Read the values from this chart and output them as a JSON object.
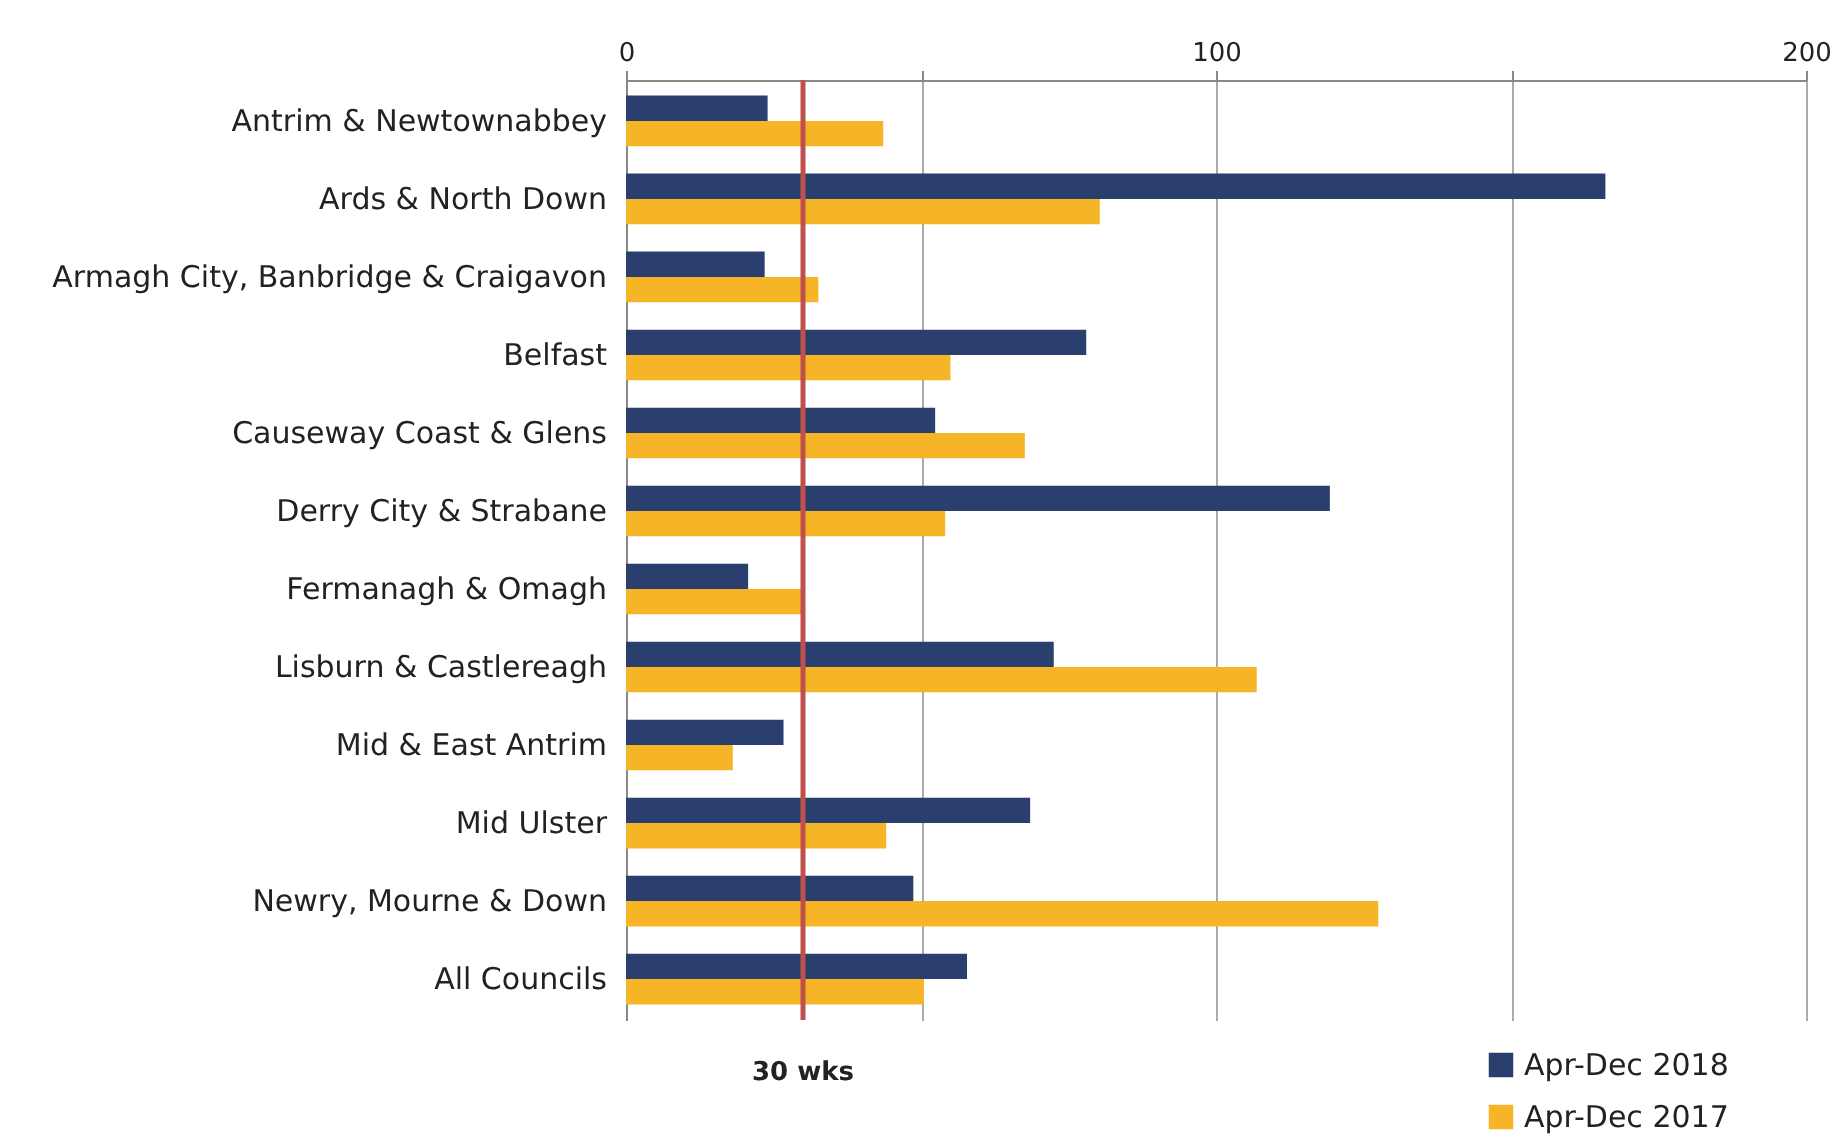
{
  "chart_data": {
    "type": "bar",
    "orientation": "horizontal",
    "categories": [
      "Antrim & Newtownabbey",
      "Ards & North Down",
      "Armagh City, Banbridge & Craigavon",
      "Belfast",
      "Causeway Coast & Glens",
      "Derry City & Strabane",
      "Fermanagh & Omagh",
      "Lisburn & Castlereagh",
      "Mid & East Antrim",
      "Mid Ulster",
      "Newry, Mourne & Down",
      "All Councils"
    ],
    "series": [
      {
        "name": "Apr-Dec 2018",
        "color": "#2b3f6e",
        "values": [
          24,
          166,
          23.5,
          78,
          52.4,
          119.3,
          20.7,
          72.5,
          26.7,
          68.5,
          48.7,
          57.8
        ]
      },
      {
        "name": "Apr-Dec 2017",
        "color": "#f6b526",
        "values": [
          43.6,
          80.3,
          32.6,
          55,
          67.6,
          54.1,
          29.7,
          106.9,
          18.1,
          44.1,
          127.5,
          50.5
        ]
      }
    ],
    "xlim": [
      0,
      200
    ],
    "xticks": [
      0,
      {
        "value": 50,
        "label": null
      },
      100,
      {
        "value": 150,
        "label": null
      },
      200
    ],
    "grid": "x",
    "legend": "bottom right",
    "ref_lines": [
      {
        "axis": "x",
        "value": 30,
        "label": "30 wks",
        "color": "#c0504d"
      }
    ]
  }
}
